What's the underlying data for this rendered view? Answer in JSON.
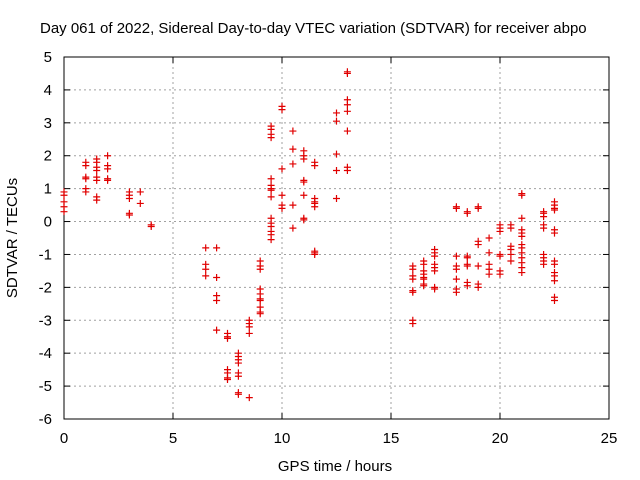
{
  "chart_data": {
    "type": "scatter",
    "title": "Day 061 of 2022, Sidereal Day-to-day VTEC variation (SDTVAR) for receiver abpo",
    "xlabel": "GPS time / hours",
    "ylabel": "SDTVAR / TECUs",
    "xlim": [
      0,
      25
    ],
    "ylim": [
      -6,
      5
    ],
    "xticks": [
      "0",
      "5",
      "10",
      "15",
      "20",
      "25"
    ],
    "yticks": [
      "-6",
      "-5",
      "-4",
      "-3",
      "-2",
      "-1",
      "0",
      "1",
      "2",
      "3",
      "4",
      "5"
    ],
    "grid": true,
    "marker": "plus",
    "series": [
      {
        "name": "SDTVAR",
        "color": "#e00000",
        "points": [
          [
            0,
            0.9
          ],
          [
            0,
            0.8
          ],
          [
            0,
            0.6
          ],
          [
            0,
            0.45
          ],
          [
            0,
            0.3
          ],
          [
            1.0,
            1.8
          ],
          [
            1.0,
            1.7
          ],
          [
            1.0,
            1.35
          ],
          [
            1.0,
            1.3
          ],
          [
            1.0,
            1.0
          ],
          [
            1.0,
            0.9
          ],
          [
            1.5,
            1.9
          ],
          [
            1.5,
            1.8
          ],
          [
            1.5,
            1.65
          ],
          [
            1.5,
            1.55
          ],
          [
            1.5,
            1.35
          ],
          [
            1.5,
            1.25
          ],
          [
            1.5,
            0.75
          ],
          [
            1.5,
            0.65
          ],
          [
            2.0,
            2.0
          ],
          [
            2.0,
            1.7
          ],
          [
            2.0,
            1.6
          ],
          [
            2.0,
            1.3
          ],
          [
            2.0,
            1.25
          ],
          [
            3.0,
            0.9
          ],
          [
            3.0,
            0.8
          ],
          [
            3.0,
            0.7
          ],
          [
            3.0,
            0.25
          ],
          [
            3.0,
            0.2
          ],
          [
            3.5,
            0.9
          ],
          [
            3.5,
            0.55
          ],
          [
            4.0,
            -0.1
          ],
          [
            4.0,
            -0.15
          ],
          [
            6.5,
            -0.8
          ],
          [
            6.5,
            -1.3
          ],
          [
            6.5,
            -1.45
          ],
          [
            6.5,
            -1.65
          ],
          [
            7.0,
            -0.8
          ],
          [
            7.0,
            -1.7
          ],
          [
            7.0,
            -2.25
          ],
          [
            7.0,
            -2.4
          ],
          [
            7.0,
            -3.3
          ],
          [
            7.5,
            -3.4
          ],
          [
            7.5,
            -3.5
          ],
          [
            7.5,
            -3.55
          ],
          [
            7.5,
            -4.5
          ],
          [
            7.5,
            -4.6
          ],
          [
            7.5,
            -4.75
          ],
          [
            7.5,
            -4.8
          ],
          [
            8.0,
            -4.0
          ],
          [
            8.0,
            -4.1
          ],
          [
            8.0,
            -4.2
          ],
          [
            8.0,
            -4.3
          ],
          [
            8.0,
            -4.6
          ],
          [
            8.0,
            -4.7
          ],
          [
            8.0,
            -5.2
          ],
          [
            8.0,
            -5.25
          ],
          [
            8.5,
            -3.0
          ],
          [
            8.5,
            -3.1
          ],
          [
            8.5,
            -3.2
          ],
          [
            8.5,
            -3.4
          ],
          [
            8.5,
            -5.35
          ],
          [
            9.0,
            -1.2
          ],
          [
            9.0,
            -1.35
          ],
          [
            9.0,
            -1.45
          ],
          [
            9.0,
            -2.05
          ],
          [
            9.0,
            -2.2
          ],
          [
            9.0,
            -2.35
          ],
          [
            9.0,
            -2.4
          ],
          [
            9.0,
            -2.6
          ],
          [
            9.0,
            -2.75
          ],
          [
            9.0,
            -2.8
          ],
          [
            9.5,
            2.9
          ],
          [
            9.5,
            2.8
          ],
          [
            9.5,
            2.65
          ],
          [
            9.5,
            2.55
          ],
          [
            9.5,
            1.3
          ],
          [
            9.5,
            1.1
          ],
          [
            9.5,
            1.0
          ],
          [
            9.5,
            0.95
          ],
          [
            9.5,
            0.75
          ],
          [
            9.5,
            0.1
          ],
          [
            9.5,
            -0.05
          ],
          [
            9.5,
            -0.15
          ],
          [
            9.5,
            -0.3
          ],
          [
            9.5,
            -0.4
          ],
          [
            9.5,
            -0.55
          ],
          [
            10.0,
            3.5
          ],
          [
            10.0,
            3.4
          ],
          [
            10.0,
            1.6
          ],
          [
            10.0,
            0.8
          ],
          [
            10.0,
            0.5
          ],
          [
            10.0,
            0.4
          ],
          [
            10.5,
            2.75
          ],
          [
            10.5,
            2.2
          ],
          [
            10.5,
            1.75
          ],
          [
            10.5,
            0.5
          ],
          [
            10.5,
            -0.2
          ],
          [
            11.0,
            2.15
          ],
          [
            11.0,
            2.0
          ],
          [
            11.0,
            1.9
          ],
          [
            11.0,
            1.25
          ],
          [
            11.0,
            1.2
          ],
          [
            11.0,
            0.8
          ],
          [
            11.0,
            0.1
          ],
          [
            11.0,
            0.05
          ],
          [
            11.5,
            1.8
          ],
          [
            11.5,
            1.7
          ],
          [
            11.5,
            0.7
          ],
          [
            11.5,
            0.6
          ],
          [
            11.5,
            0.55
          ],
          [
            11.5,
            0.45
          ],
          [
            11.5,
            -0.9
          ],
          [
            11.5,
            -0.95
          ],
          [
            11.5,
            -1.0
          ],
          [
            12.5,
            3.3
          ],
          [
            12.5,
            3.05
          ],
          [
            12.5,
            2.05
          ],
          [
            12.5,
            1.55
          ],
          [
            12.5,
            0.7
          ],
          [
            13.0,
            4.55
          ],
          [
            13.0,
            4.5
          ],
          [
            13.0,
            3.7
          ],
          [
            13.0,
            3.55
          ],
          [
            13.0,
            3.35
          ],
          [
            13.0,
            2.75
          ],
          [
            13.0,
            1.65
          ],
          [
            13.0,
            1.55
          ],
          [
            16.0,
            -1.35
          ],
          [
            16.0,
            -1.45
          ],
          [
            16.0,
            -1.65
          ],
          [
            16.0,
            -1.75
          ],
          [
            16.0,
            -2.1
          ],
          [
            16.0,
            -2.15
          ],
          [
            16.0,
            -3.0
          ],
          [
            16.0,
            -3.1
          ],
          [
            16.5,
            -1.2
          ],
          [
            16.5,
            -1.3
          ],
          [
            16.5,
            -1.5
          ],
          [
            16.5,
            -1.6
          ],
          [
            16.5,
            -1.7
          ],
          [
            16.5,
            -1.75
          ],
          [
            16.5,
            -1.9
          ],
          [
            16.5,
            -1.95
          ],
          [
            17.0,
            -0.85
          ],
          [
            17.0,
            -0.95
          ],
          [
            17.0,
            -1.05
          ],
          [
            17.0,
            -1.3
          ],
          [
            17.0,
            -1.4
          ],
          [
            17.0,
            -1.5
          ],
          [
            17.0,
            -2.0
          ],
          [
            17.0,
            -2.05
          ],
          [
            18.0,
            0.45
          ],
          [
            18.0,
            0.4
          ],
          [
            18.0,
            -1.05
          ],
          [
            18.0,
            -1.35
          ],
          [
            18.0,
            -1.45
          ],
          [
            18.0,
            -1.75
          ],
          [
            18.0,
            -2.05
          ],
          [
            18.0,
            -2.15
          ],
          [
            18.5,
            0.3
          ],
          [
            18.5,
            0.25
          ],
          [
            18.5,
            -1.05
          ],
          [
            18.5,
            -1.1
          ],
          [
            18.5,
            -1.3
          ],
          [
            18.5,
            -1.35
          ],
          [
            18.5,
            -1.85
          ],
          [
            18.5,
            -1.95
          ],
          [
            19.0,
            0.45
          ],
          [
            19.0,
            0.4
          ],
          [
            19.0,
            -0.6
          ],
          [
            19.0,
            -0.7
          ],
          [
            19.0,
            -1.35
          ],
          [
            19.0,
            -1.9
          ],
          [
            19.0,
            -2.0
          ],
          [
            19.5,
            -0.5
          ],
          [
            19.5,
            -0.95
          ],
          [
            19.5,
            -1.3
          ],
          [
            19.5,
            -1.45
          ],
          [
            19.5,
            -1.6
          ],
          [
            20.0,
            -0.1
          ],
          [
            20.0,
            -0.2
          ],
          [
            20.0,
            -0.3
          ],
          [
            20.0,
            -1.0
          ],
          [
            20.0,
            -1.05
          ],
          [
            20.0,
            -1.5
          ],
          [
            20.0,
            -1.6
          ],
          [
            20.5,
            -0.1
          ],
          [
            20.5,
            -0.2
          ],
          [
            20.5,
            -0.75
          ],
          [
            20.5,
            -0.85
          ],
          [
            20.5,
            -1.0
          ],
          [
            20.5,
            -1.2
          ],
          [
            21.0,
            0.85
          ],
          [
            21.0,
            0.8
          ],
          [
            21.0,
            0.1
          ],
          [
            21.0,
            -0.25
          ],
          [
            21.0,
            -0.35
          ],
          [
            21.0,
            -0.45
          ],
          [
            21.0,
            -0.7
          ],
          [
            21.0,
            -0.8
          ],
          [
            21.0,
            -0.95
          ],
          [
            21.0,
            -1.1
          ],
          [
            21.0,
            -1.25
          ],
          [
            21.0,
            -1.4
          ],
          [
            21.0,
            -1.55
          ],
          [
            22.0,
            0.3
          ],
          [
            22.0,
            0.25
          ],
          [
            22.0,
            0.15
          ],
          [
            22.0,
            -0.1
          ],
          [
            22.0,
            -0.2
          ],
          [
            22.0,
            -1.0
          ],
          [
            22.0,
            -1.1
          ],
          [
            22.0,
            -1.2
          ],
          [
            22.0,
            -1.3
          ],
          [
            22.5,
            0.6
          ],
          [
            22.5,
            0.5
          ],
          [
            22.5,
            0.4
          ],
          [
            22.5,
            0.35
          ],
          [
            22.5,
            -0.25
          ],
          [
            22.5,
            -0.35
          ],
          [
            22.5,
            -1.2
          ],
          [
            22.5,
            -1.3
          ],
          [
            22.5,
            -1.55
          ],
          [
            22.5,
            -1.65
          ],
          [
            22.5,
            -1.8
          ],
          [
            22.5,
            -2.3
          ],
          [
            22.5,
            -2.4
          ]
        ]
      }
    ]
  }
}
